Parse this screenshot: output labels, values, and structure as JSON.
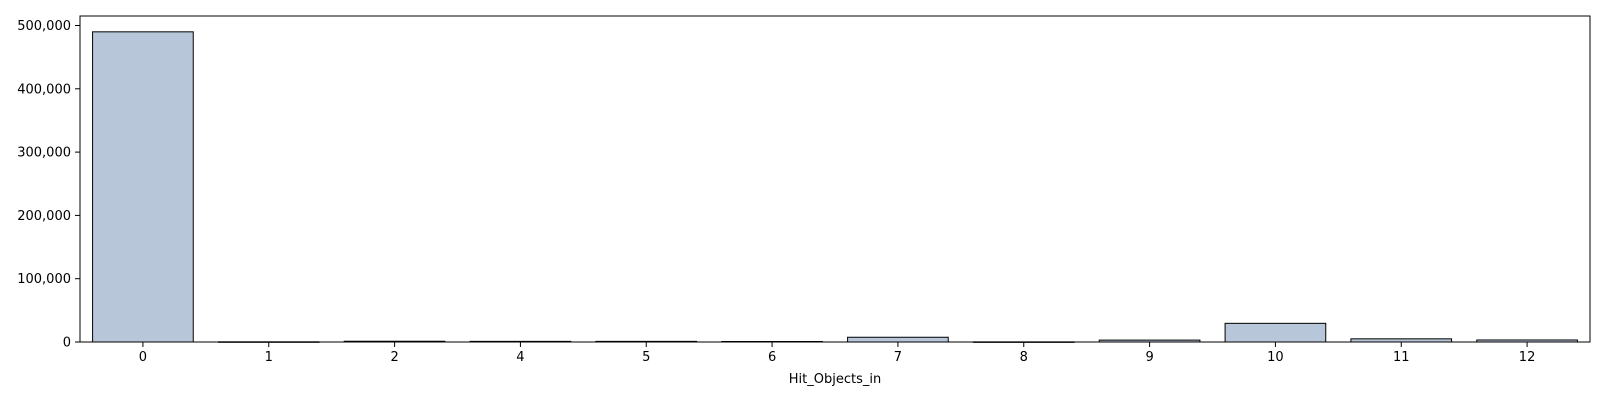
{
  "chart_data": {
    "type": "bar",
    "xlabel": "Hit_Objects_in",
    "ylabel": "",
    "categories": [
      "0",
      "1",
      "2",
      "4",
      "5",
      "6",
      "7",
      "8",
      "9",
      "10",
      "11",
      "12"
    ],
    "values": [
      490000,
      300,
      1200,
      1000,
      1000,
      800,
      7500,
      200,
      3000,
      29500,
      5000,
      3200
    ],
    "ylim": [
      0,
      515000
    ],
    "yticks": [
      0,
      100000,
      200000,
      300000,
      400000,
      500000
    ],
    "ytick_labels": [
      "0",
      "100,000",
      "200,000",
      "300,000",
      "400,000",
      "500,000"
    ],
    "grid": false,
    "bar_color": "#b8c6d9",
    "edge_color": "#000000"
  }
}
